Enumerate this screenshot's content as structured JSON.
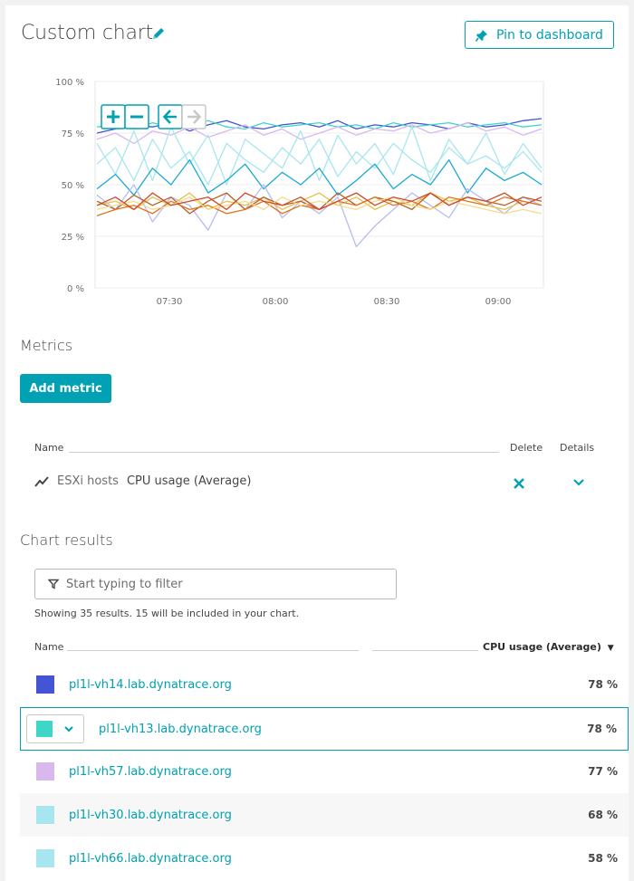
{
  "title": "Custom chart",
  "pin_button": {
    "label": "Pin to dashboard"
  },
  "chart_data": {
    "type": "line",
    "ylim": [
      0,
      100
    ],
    "y_ticks": [
      "100 %",
      "75 %",
      "50 %",
      "25 %",
      "0 %"
    ],
    "x_ticks": [
      "07:30",
      "08:00",
      "08:30",
      "09:00"
    ],
    "zoom_controls": {
      "zoom_in": "+",
      "zoom_out": "−",
      "back": "←",
      "forward": "→"
    },
    "series": [
      {
        "color": "#4354d4",
        "values": [
          75,
          77,
          79,
          78,
          80,
          76,
          79,
          81,
          78,
          77,
          79,
          80,
          78,
          81,
          77,
          79,
          78,
          80,
          79,
          77,
          80,
          78,
          79,
          81,
          82
        ]
      },
      {
        "color": "#3ed6c6",
        "values": [
          78,
          79,
          77,
          80,
          78,
          79,
          81,
          78,
          77,
          80,
          78,
          79,
          80,
          78,
          79,
          77,
          80,
          78,
          79,
          80,
          78,
          79,
          80,
          78,
          79
        ]
      },
      {
        "color": "#d9b8ee",
        "values": [
          72,
          75,
          70,
          76,
          74,
          78,
          73,
          76,
          79,
          74,
          77,
          72,
          75,
          78,
          74,
          77,
          76,
          79,
          75,
          77,
          80,
          76,
          78,
          74,
          77
        ]
      },
      {
        "color": "#a8e6ef",
        "values": [
          70,
          55,
          76,
          52,
          78,
          60,
          74,
          50,
          72,
          65,
          58,
          76,
          52,
          74,
          60,
          70,
          55,
          78,
          52,
          72,
          60,
          75,
          55,
          70,
          58
        ]
      },
      {
        "color": "#a8e6ef",
        "values": [
          60,
          68,
          52,
          72,
          58,
          66,
          50,
          70,
          62,
          56,
          68,
          60,
          72,
          54,
          66,
          58,
          70,
          62,
          56,
          68,
          60,
          64,
          58,
          66,
          56
        ]
      },
      {
        "color": "#1ba9d6",
        "values": [
          48,
          55,
          45,
          58,
          50,
          62,
          46,
          52,
          60,
          48,
          56,
          50,
          58,
          45,
          52,
          60,
          48,
          55,
          50,
          62,
          46,
          58,
          52,
          56,
          50
        ]
      },
      {
        "color": "#b6bdf2",
        "values": [
          45,
          38,
          50,
          32,
          44,
          40,
          28,
          46,
          38,
          50,
          34,
          42,
          36,
          44,
          20,
          30,
          38,
          46,
          40,
          34,
          48,
          42,
          36,
          44,
          40
        ]
      },
      {
        "color": "#e8c14a",
        "values": [
          40,
          42,
          38,
          44,
          40,
          46,
          38,
          42,
          40,
          44,
          38,
          42,
          46,
          40,
          44,
          38,
          42,
          40,
          46,
          42,
          44,
          40,
          38,
          42,
          40
        ]
      },
      {
        "color": "#b5622b",
        "values": [
          42,
          38,
          45,
          40,
          44,
          36,
          42,
          46,
          38,
          44,
          40,
          42,
          38,
          46,
          40,
          44,
          42,
          38,
          46,
          40,
          44,
          42,
          40,
          44,
          42
        ]
      },
      {
        "color": "#e0731f",
        "values": [
          35,
          38,
          40,
          36,
          42,
          38,
          40,
          36,
          38,
          42,
          36,
          40,
          38,
          42,
          40,
          44,
          40,
          42,
          38,
          44,
          42,
          40,
          44,
          42,
          40
        ]
      },
      {
        "color": "#f5dc8a",
        "values": [
          38,
          40,
          42,
          38,
          40,
          44,
          38,
          40,
          42,
          38,
          44,
          40,
          42,
          40,
          38,
          42,
          44,
          40,
          38,
          42,
          40,
          38,
          36,
          38,
          36
        ]
      },
      {
        "color": "#d04a2a",
        "values": [
          40,
          44,
          38,
          46,
          40,
          42,
          44,
          38,
          46,
          42,
          40,
          44,
          38,
          42,
          46,
          40,
          44,
          42,
          46,
          40,
          44,
          42,
          46,
          40,
          44
        ]
      }
    ]
  },
  "metrics": {
    "heading": "Metrics",
    "add_label": "Add metric",
    "col_name": "Name",
    "col_delete": "Delete",
    "col_details": "Details",
    "row": {
      "entity": "ESXi hosts",
      "metric": "CPU usage (Average)"
    }
  },
  "results": {
    "heading": "Chart results",
    "filter_placeholder": "Start typing to filter",
    "showing": "Showing 35 results. 15 will be included in your chart.",
    "col_name": "Name",
    "col_metric": "CPU usage (Average)",
    "rows": [
      {
        "name": "pl1l-vh14.lab.dynatrace.org",
        "value": "78 %",
        "color": "#4354d4"
      },
      {
        "name": "pl1l-vh13.lab.dynatrace.org",
        "value": "78 %",
        "color": "#3ed6c6"
      },
      {
        "name": "pl1l-vh57.lab.dynatrace.org",
        "value": "77 %",
        "color": "#d9b8ee"
      },
      {
        "name": "pl1l-vh30.lab.dynatrace.org",
        "value": "68 %",
        "color": "#a8e6ef"
      },
      {
        "name": "pl1l-vh66.lab.dynatrace.org",
        "value": "58 %",
        "color": "#a8e6ef"
      }
    ]
  }
}
